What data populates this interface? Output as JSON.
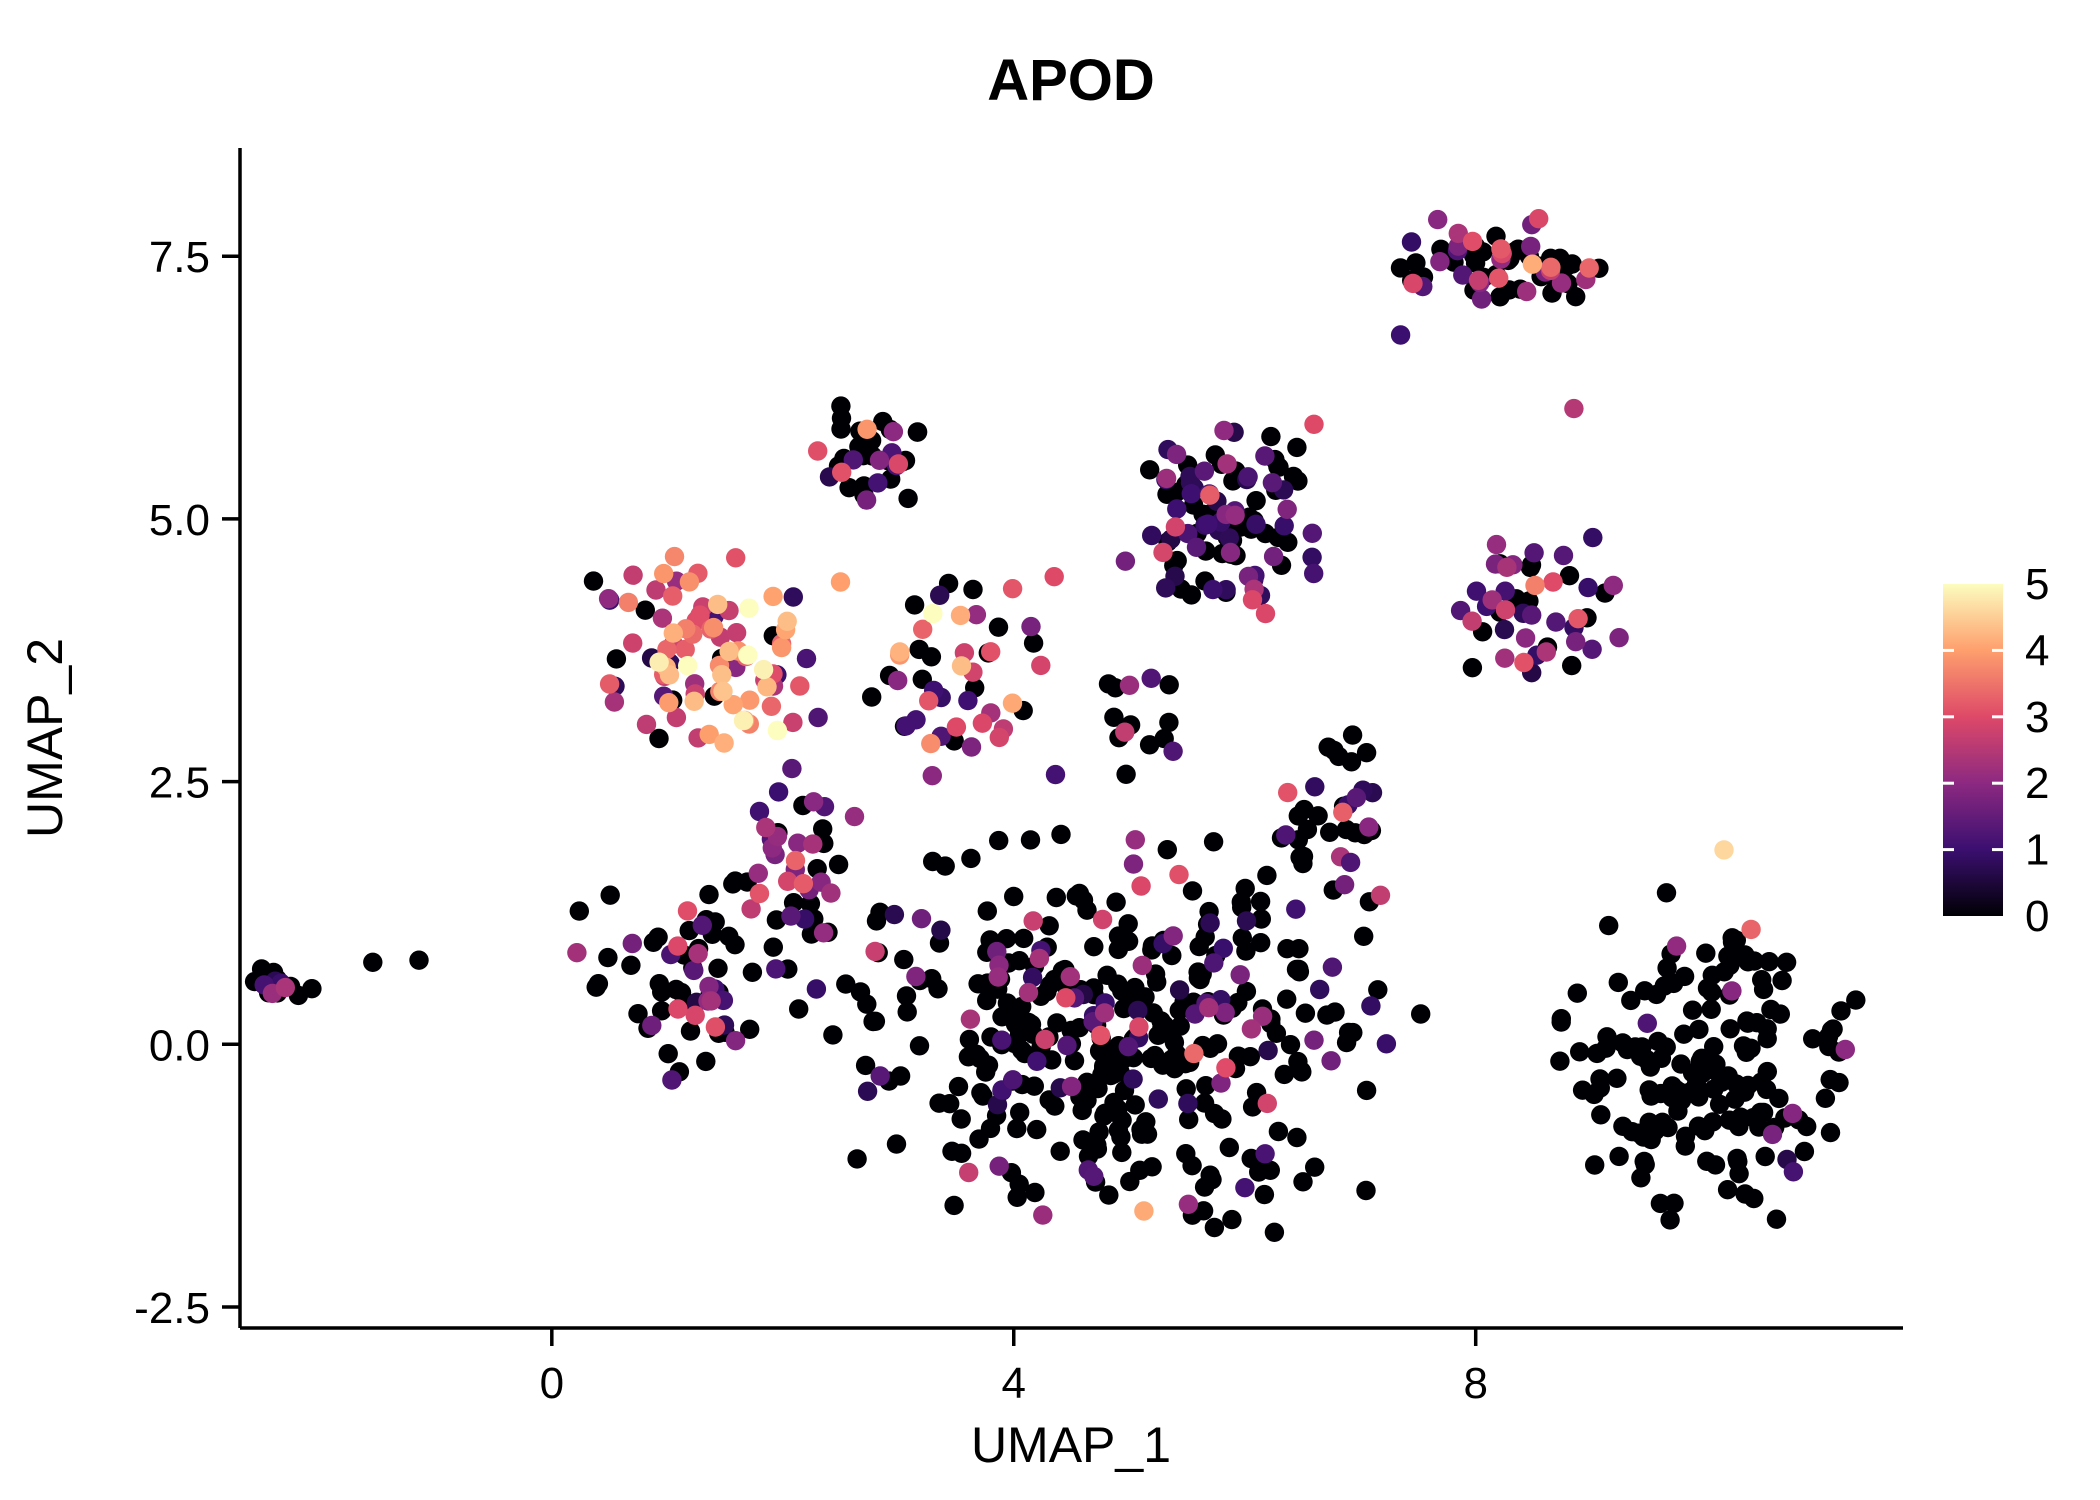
{
  "chart_data": {
    "type": "scatter",
    "title": "APOD",
    "xlabel": "UMAP_1",
    "ylabel": "UMAP_2",
    "xlim": [
      -2.7,
      11.7
    ],
    "ylim": [
      -2.7,
      8.53
    ],
    "xticks": [
      0,
      4,
      8
    ],
    "xtick_labels": [
      "0",
      "4",
      "8"
    ],
    "yticks": [
      -2.5,
      0.0,
      2.5,
      5.0,
      7.5
    ],
    "ytick_labels": [
      "-2.5",
      "0.0",
      "2.5",
      "5.0",
      "7.5"
    ],
    "grid": false,
    "background": "#ffffff",
    "axis_color": "#000000",
    "legend": {
      "position": "right",
      "min": 0,
      "max": 5,
      "ticks": [
        0,
        1,
        2,
        3,
        4,
        5
      ],
      "tick_labels": [
        "0",
        "1",
        "2",
        "3",
        "4",
        "5"
      ],
      "colormap_name": "magma",
      "colors": [
        "#000004",
        "#3b0f70",
        "#8c2981",
        "#de4968",
        "#fe9f6d",
        "#fcfdbf"
      ]
    },
    "seed": 7,
    "point_radius_px": 9.7,
    "clusters": [
      {
        "name": "left-isolated-cluster",
        "cx": -2.35,
        "cy": 0.6,
        "rx": 0.28,
        "ry": 0.18,
        "n": 16,
        "value_weights": [
          0.8,
          0.08,
          0.12,
          0,
          0,
          0
        ]
      },
      {
        "name": "large-bottom-center-cluster",
        "cx": 5.0,
        "cy": 0.1,
        "rx": 2.35,
        "ry": 1.75,
        "n": 380,
        "value_weights": [
          0.78,
          0.13,
          0.06,
          0.025,
          0.005,
          0
        ]
      },
      {
        "name": "bottom-right-cluster",
        "cx": 10.0,
        "cy": -0.1,
        "rx": 1.2,
        "ry": 1.45,
        "n": 170,
        "value_weights": [
          0.9,
          0.05,
          0.04,
          0.01,
          0,
          0
        ]
      },
      {
        "name": "left-lower-scatter",
        "cx": 1.3,
        "cy": 0.6,
        "rx": 1.05,
        "ry": 0.95,
        "n": 70,
        "value_weights": [
          0.62,
          0.13,
          0.12,
          0.13,
          0,
          0
        ]
      },
      {
        "name": "trail-below-high-cluster",
        "cx": 2.2,
        "cy": 1.7,
        "rx": 0.45,
        "ry": 0.9,
        "n": 34,
        "value_weights": [
          0.3,
          0.25,
          0.25,
          0.15,
          0.05,
          0
        ]
      },
      {
        "name": "center-sparse-cluster",
        "cx": 5.0,
        "cy": 3.1,
        "rx": 0.5,
        "ry": 0.5,
        "n": 14,
        "value_weights": [
          0.7,
          0.15,
          0.1,
          0.05,
          0,
          0
        ]
      },
      {
        "name": "upper-right-of-center-cluster",
        "cx": 6.8,
        "cy": 2.2,
        "rx": 0.55,
        "ry": 0.75,
        "n": 30,
        "value_weights": [
          0.6,
          0.15,
          0.1,
          0.15,
          0,
          0
        ]
      },
      {
        "name": "mid-mixed-cluster",
        "cx": 3.6,
        "cy": 3.4,
        "rx": 0.85,
        "ry": 0.95,
        "n": 46,
        "value_weights": [
          0.4,
          0.1,
          0.14,
          0.2,
          0.16,
          0
        ]
      },
      {
        "name": "upper-center-dark-cluster",
        "cx": 5.8,
        "cy": 5.0,
        "rx": 0.8,
        "ry": 0.95,
        "n": 100,
        "value_weights": [
          0.45,
          0.37,
          0.13,
          0.05,
          0,
          0
        ]
      },
      {
        "name": "top-middle-cluster",
        "cx": 2.75,
        "cy": 5.7,
        "rx": 0.5,
        "ry": 0.48,
        "n": 34,
        "value_weights": [
          0.58,
          0.12,
          0.1,
          0.14,
          0.06,
          0
        ]
      },
      {
        "name": "top-right-cluster",
        "cx": 8.25,
        "cy": 7.45,
        "rx": 0.95,
        "ry": 0.4,
        "n": 62,
        "value_weights": [
          0.55,
          0.12,
          0.15,
          0.15,
          0.03,
          0
        ]
      },
      {
        "name": "right-mid-cluster",
        "cx": 8.5,
        "cy": 4.1,
        "rx": 0.7,
        "ry": 0.7,
        "n": 46,
        "value_weights": [
          0.4,
          0.2,
          0.2,
          0.18,
          0.02,
          0
        ]
      },
      {
        "name": "high-expression-cluster",
        "cx": 1.35,
        "cy": 3.7,
        "rx": 0.95,
        "ry": 0.95,
        "n": 92,
        "value_weights": [
          0.06,
          0.06,
          0.14,
          0.32,
          0.32,
          0.1
        ]
      }
    ],
    "singles": [
      {
        "x": -1.55,
        "y": 0.78,
        "value": 0
      },
      {
        "x": -1.15,
        "y": 0.8,
        "value": 0
      },
      {
        "x": 7.35,
        "y": 6.75,
        "value": 1
      },
      {
        "x": 8.85,
        "y": 6.05,
        "value": 2.5
      },
      {
        "x": 2.5,
        "y": 4.4,
        "value": 4
      },
      {
        "x": 3.3,
        "y": 4.1,
        "value": 5
      },
      {
        "x": 4.35,
        "y": 4.45,
        "value": 3
      },
      {
        "x": 6.6,
        "y": 5.9,
        "value": 3
      },
      {
        "x": 10.15,
        "y": 1.85,
        "value": 4.6
      },
      {
        "x": 11.2,
        "y": -0.05,
        "value": 2
      }
    ]
  }
}
